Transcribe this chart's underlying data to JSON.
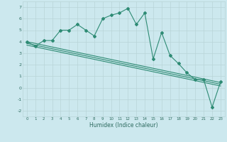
{
  "x": [
    0,
    1,
    2,
    3,
    4,
    5,
    6,
    7,
    8,
    9,
    10,
    11,
    12,
    13,
    14,
    15,
    16,
    17,
    18,
    19,
    20,
    21,
    22,
    23
  ],
  "y_main": [
    4.0,
    3.6,
    4.1,
    4.1,
    5.0,
    5.0,
    5.5,
    5.0,
    4.5,
    6.0,
    6.3,
    6.5,
    6.9,
    5.5,
    6.5,
    2.5,
    4.8,
    2.8,
    2.1,
    1.3,
    0.7,
    0.7,
    -1.7,
    0.5
  ],
  "line_color": "#2e8b74",
  "bg_color": "#cce8ee",
  "grid_color": "#b8d4d8",
  "tick_color": "#2e6b60",
  "xlabel": "Humidex (Indice chaleur)",
  "ylim": [
    -2.5,
    7.5
  ],
  "xlim": [
    -0.5,
    23.5
  ],
  "yticks": [
    -2,
    -1,
    0,
    1,
    2,
    3,
    4,
    5,
    6,
    7
  ],
  "xticks": [
    0,
    1,
    2,
    3,
    4,
    5,
    6,
    7,
    8,
    9,
    10,
    11,
    12,
    13,
    14,
    15,
    16,
    17,
    18,
    19,
    20,
    21,
    22,
    23
  ],
  "trend_lines": [
    {
      "x0": 0,
      "y0": 4.0,
      "x1": 23,
      "y1": 0.45
    },
    {
      "x0": 0,
      "y0": 3.85,
      "x1": 23,
      "y1": 0.3
    },
    {
      "x0": 0,
      "y0": 3.7,
      "x1": 23,
      "y1": 0.15
    }
  ],
  "trend_color": "#2e8b74"
}
